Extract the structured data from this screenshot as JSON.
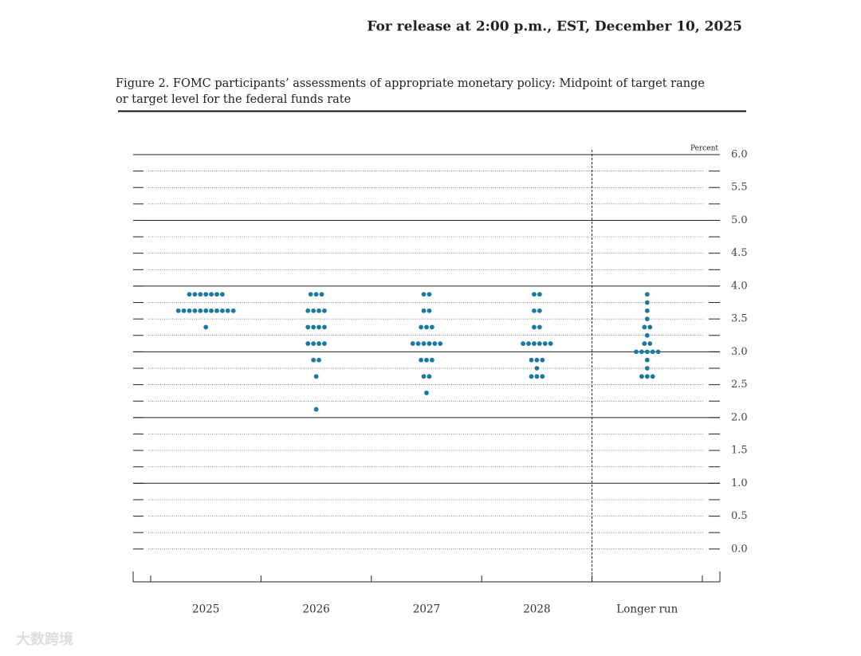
{
  "release": "For release at 2:00 p.m., EST, December 10, 2025",
  "watermark": "大数跨境",
  "chart_data": {
    "type": "dot",
    "title": [
      "Figure 2. FOMC participants’ assessments of appropriate monetary policy: Midpoint of target range",
      "or target level for the federal funds rate"
    ],
    "y_label": "Percent",
    "color": "#1b78a0",
    "categories": [
      "2025",
      "2026",
      "2027",
      "2028",
      "Longer run"
    ],
    "values": [
      [
        3.875,
        3.875,
        3.875,
        3.875,
        3.875,
        3.875,
        3.875,
        3.625,
        3.625,
        3.625,
        3.625,
        3.625,
        3.625,
        3.625,
        3.625,
        3.625,
        3.625,
        3.625,
        3.375
      ],
      [
        3.875,
        3.875,
        3.875,
        3.625,
        3.625,
        3.625,
        3.625,
        3.375,
        3.375,
        3.375,
        3.375,
        3.125,
        3.125,
        3.125,
        3.125,
        2.875,
        2.875,
        2.625,
        2.125
      ],
      [
        3.875,
        3.875,
        3.625,
        3.625,
        3.375,
        3.375,
        3.375,
        3.125,
        3.125,
        3.125,
        3.125,
        3.125,
        3.125,
        2.875,
        2.875,
        2.875,
        2.625,
        2.625,
        2.375
      ],
      [
        3.875,
        3.875,
        3.625,
        3.625,
        3.375,
        3.375,
        3.125,
        3.125,
        3.125,
        3.125,
        3.125,
        3.125,
        2.875,
        2.875,
        2.875,
        2.75,
        2.625,
        2.625,
        2.625
      ],
      [
        3.875,
        3.75,
        3.625,
        3.5,
        3.375,
        3.375,
        3.25,
        3.125,
        3.125,
        3.0,
        3.0,
        3.0,
        3.0,
        3.0,
        2.875,
        2.75,
        2.625,
        2.625,
        2.625
      ]
    ],
    "ylim": [
      -0.5,
      6.0
    ],
    "yticks": [
      {
        "value": 0,
        "label": "0.0"
      },
      0.5,
      {
        "value": 1,
        "label": "1.0"
      },
      1.5,
      {
        "value": 2,
        "label": "2.0"
      },
      2.5,
      {
        "value": 3,
        "label": "3.0"
      },
      3.5,
      {
        "value": 4,
        "label": "4.0"
      },
      4.5,
      {
        "value": 5,
        "label": "5.0"
      },
      5.5,
      {
        "value": 6,
        "label": "6.0"
      }
    ],
    "grid": true
  }
}
